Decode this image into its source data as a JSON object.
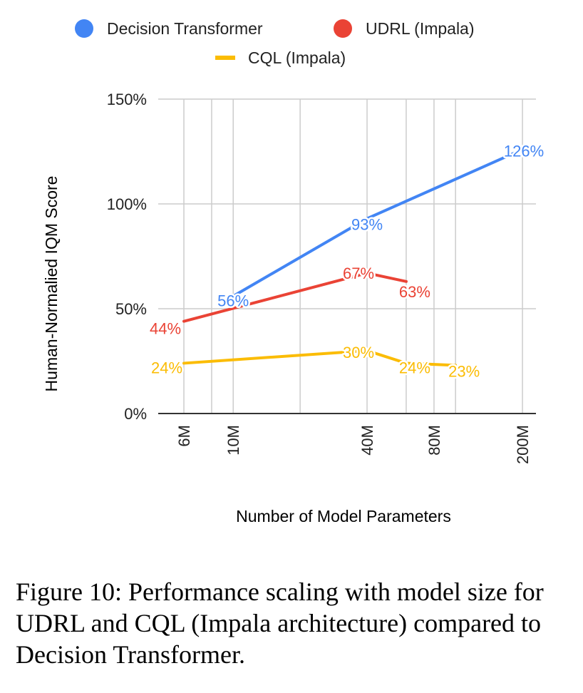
{
  "chart_data": {
    "type": "line",
    "xscale": "log",
    "xlabel": "Number of Model Parameters",
    "ylabel": "Human-Normalied IQM Score",
    "ylim": [
      0,
      150
    ],
    "yticks": [
      0,
      50,
      100,
      150
    ],
    "ytick_labels": [
      "0%",
      "50%",
      "100%",
      "150%"
    ],
    "xticks": [
      6,
      10,
      40,
      80,
      200
    ],
    "xtick_labels": [
      "6M",
      "10M",
      "40M",
      "80M",
      "200M"
    ],
    "xgrid": [
      6,
      8,
      10,
      20,
      40,
      60,
      80,
      100,
      200
    ],
    "xlim": [
      4.6,
      230
    ],
    "legend_position": "top",
    "series": [
      {
        "name": "Decision Transformer",
        "color": "#4285F4",
        "marker": "circle",
        "x": [
          10,
          40,
          200
        ],
        "y": [
          56,
          93,
          126
        ],
        "labels": [
          "56%",
          "93%",
          "126%"
        ]
      },
      {
        "name": "UDRL (Impala)",
        "color": "#EA4335",
        "marker": "circle",
        "x": [
          6,
          40,
          60
        ],
        "y": [
          44,
          67,
          63
        ],
        "labels": [
          "44%",
          "67%",
          "63%"
        ]
      },
      {
        "name": "CQL (Impala)",
        "color": "#FBBC04",
        "marker": "line",
        "x": [
          6,
          40,
          60,
          100
        ],
        "y": [
          24,
          30,
          24,
          23
        ],
        "labels": [
          "24%",
          "30%",
          "24%",
          "23%"
        ]
      }
    ]
  },
  "caption": "Figure 10: Performance scaling with model size for UDRL and CQL (Impala architecture) compared to Decision Transformer."
}
